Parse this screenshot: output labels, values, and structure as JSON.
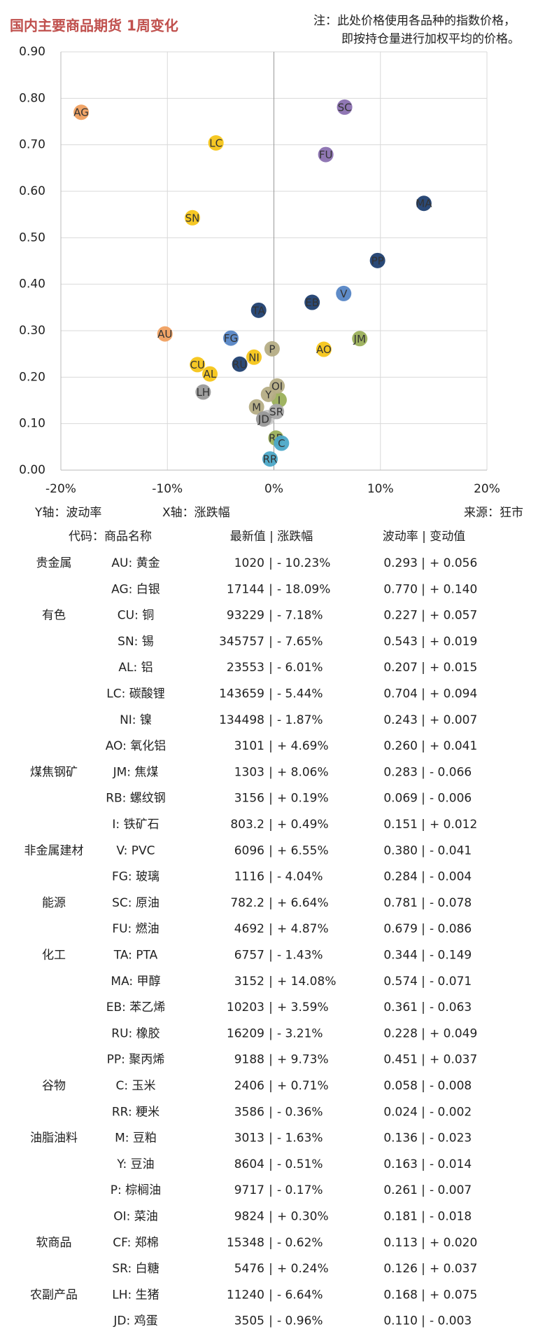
{
  "header": {
    "title": "国内主要商品期货 1周变化",
    "note": [
      "注：此处价格使用各品种的指数价格，",
      "即按持仓量进行加权平均的价格。"
    ]
  },
  "chart_data": {
    "type": "scatter",
    "labels": [
      "AU",
      "AG",
      "CU",
      "SN",
      "AL",
      "LC",
      "NI",
      "AO",
      "JM",
      "RB",
      "I",
      "V",
      "FG",
      "SC",
      "FU",
      "TA",
      "MA",
      "EB",
      "RU",
      "PP",
      "C",
      "RR",
      "M",
      "Y",
      "P",
      "OI",
      "CF",
      "SR",
      "LH",
      "JD"
    ],
    "x": [
      -10.23,
      -18.09,
      -7.18,
      -7.65,
      -6.01,
      -5.44,
      -1.87,
      4.69,
      8.06,
      0.19,
      0.49,
      6.55,
      -4.04,
      6.64,
      4.87,
      -1.43,
      14.08,
      3.59,
      -3.21,
      9.73,
      0.71,
      -0.36,
      -1.63,
      -0.51,
      -0.17,
      0.3,
      -0.62,
      0.24,
      -6.64,
      -0.96
    ],
    "values": [
      0.293,
      0.77,
      0.227,
      0.543,
      0.207,
      0.704,
      0.243,
      0.26,
      0.283,
      0.069,
      0.151,
      0.38,
      0.284,
      0.781,
      0.679,
      0.344,
      0.574,
      0.361,
      0.228,
      0.451,
      0.058,
      0.024,
      0.136,
      0.163,
      0.261,
      0.181,
      0.113,
      0.126,
      0.168,
      0.11
    ],
    "colors": [
      "#f0a060",
      "#f0a060",
      "#f5c518",
      "#f5c518",
      "#f5c518",
      "#f5c518",
      "#f5c518",
      "#f5c518",
      "#9bb05a",
      "#9bb05a",
      "#9bb05a",
      "#5585c5",
      "#5585c5",
      "#8a70b0",
      "#8a70b0",
      "#1f3f70",
      "#1f3f70",
      "#1f3f70",
      "#1f3f70",
      "#1f3f70",
      "#4ba8c8",
      "#4ba8c8",
      "#b5ad85",
      "#b5ad85",
      "#b5ad85",
      "#b5ad85",
      "#c8c8c8",
      "#a8a8a8",
      "#999999",
      "#999999"
    ],
    "xlim": [
      -20,
      20
    ],
    "xticks": [
      {
        "value": -20,
        "label": "-20%"
      },
      {
        "value": -10,
        "label": "-10%"
      },
      {
        "value": 0,
        "label": "0%"
      },
      {
        "value": 10,
        "label": "10%"
      },
      {
        "value": 20,
        "label": "20%"
      }
    ],
    "ylim": [
      0,
      0.9
    ],
    "yticks": [
      {
        "value": 0,
        "label": "0.00"
      },
      {
        "value": 0.1,
        "label": "0.10"
      },
      {
        "value": 0.2,
        "label": "0.20"
      },
      {
        "value": 0.3,
        "label": "0.30"
      },
      {
        "value": 0.4,
        "label": "0.40"
      },
      {
        "value": 0.5,
        "label": "0.50"
      },
      {
        "value": 0.6,
        "label": "0.60"
      },
      {
        "value": 0.7,
        "label": "0.70"
      },
      {
        "value": 0.8,
        "label": "0.80"
      },
      {
        "value": 0.9,
        "label": "0.90"
      }
    ],
    "grid": true,
    "ylabel": "Y轴：波动率",
    "xlabel": "X轴：涨跌幅",
    "source": "来源：狂市"
  },
  "table": {
    "headers": [
      "代码：商品名称",
      "最新值 | 涨跌幅",
      "波动率 | 变动值"
    ],
    "separator": "|",
    "groups": [
      {
        "name": "贵金属",
        "color": "#f0a060",
        "rows": [
          {
            "name": "AU: 黄金",
            "price": "1020",
            "change": "- 10.23%",
            "vol": "0.293",
            "delta": "+ 0.056"
          },
          {
            "name": "AG: 白银",
            "price": "17144",
            "change": "- 18.09%",
            "vol": "0.770",
            "delta": "+ 0.140"
          }
        ]
      },
      {
        "name": "有色",
        "color": "#ecbc10",
        "rows": [
          {
            "name": "CU: 铜",
            "price": "93229",
            "change": "- 7.18%",
            "vol": "0.227",
            "delta": "+ 0.057"
          },
          {
            "name": "SN: 锡",
            "price": "345757",
            "change": "- 7.65%",
            "vol": "0.543",
            "delta": "+ 0.019"
          },
          {
            "name": "AL: 铝",
            "price": "23553",
            "change": "- 6.01%",
            "vol": "0.207",
            "delta": "+ 0.015"
          },
          {
            "name": "LC: 碳酸锂",
            "price": "143659",
            "change": "- 5.44%",
            "vol": "0.704",
            "delta": "+ 0.094"
          },
          {
            "name": "NI: 镍",
            "price": "134498",
            "change": "- 1.87%",
            "vol": "0.243",
            "delta": "+ 0.007"
          },
          {
            "name": "AO: 氧化铝",
            "price": "3101",
            "change": "+ 4.69%",
            "vol": "0.260",
            "delta": "+ 0.041"
          }
        ]
      },
      {
        "name": "煤焦钢矿",
        "color": "#9bb05a",
        "rows": [
          {
            "name": "JM: 焦煤",
            "price": "1303",
            "change": "+ 8.06%",
            "vol": "0.283",
            "delta": "- 0.066"
          },
          {
            "name": "RB: 螺纹钢",
            "price": "3156",
            "change": "+ 0.19%",
            "vol": "0.069",
            "delta": "- 0.006"
          },
          {
            "name": "I: 铁矿石",
            "price": "803.2",
            "change": "+ 0.49%",
            "vol": "0.151",
            "delta": "+ 0.012"
          }
        ]
      },
      {
        "name": "非金属建材",
        "color": "#5585c5",
        "rows": [
          {
            "name": "V: PVC",
            "price": "6096",
            "change": "+ 6.55%",
            "vol": "0.380",
            "delta": "- 0.041"
          },
          {
            "name": "FG: 玻璃",
            "price": "1116",
            "change": "- 4.04%",
            "vol": "0.284",
            "delta": "- 0.004"
          }
        ]
      },
      {
        "name": "能源",
        "color": "#8a70b0",
        "rows": [
          {
            "name": "SC: 原油",
            "price": "782.2",
            "change": "+ 6.64%",
            "vol": "0.781",
            "delta": "- 0.078"
          },
          {
            "name": "FU: 燃油",
            "price": "4692",
            "change": "+ 4.87%",
            "vol": "0.679",
            "delta": "- 0.086"
          }
        ]
      },
      {
        "name": "化工",
        "color": "#1f3f70",
        "rows": [
          {
            "name": "TA: PTA",
            "price": "6757",
            "change": "- 1.43%",
            "vol": "0.344",
            "delta": "- 0.149"
          },
          {
            "name": "MA: 甲醇",
            "price": "3152",
            "change": "+ 14.08%",
            "vol": "0.574",
            "delta": "- 0.071"
          },
          {
            "name": "EB: 苯乙烯",
            "price": "10203",
            "change": "+ 3.59%",
            "vol": "0.361",
            "delta": "- 0.063"
          },
          {
            "name": "RU: 橡胶",
            "price": "16209",
            "change": "- 3.21%",
            "vol": "0.228",
            "delta": "+ 0.049"
          },
          {
            "name": "PP: 聚丙烯",
            "price": "9188",
            "change": "+ 9.73%",
            "vol": "0.451",
            "delta": "+ 0.037"
          }
        ]
      },
      {
        "name": "谷物",
        "color": "#4ba8c8",
        "rows": [
          {
            "name": "C: 玉米",
            "price": "2406",
            "change": "+ 0.71%",
            "vol": "0.058",
            "delta": "- 0.008"
          },
          {
            "name": "RR: 粳米",
            "price": "3586",
            "change": "- 0.36%",
            "vol": "0.024",
            "delta": "- 0.002"
          }
        ]
      },
      {
        "name": "油脂油料",
        "color": "#9a9258",
        "rows": [
          {
            "name": "M: 豆粕",
            "price": "3013",
            "change": "- 1.63%",
            "vol": "0.136",
            "delta": "- 0.023"
          },
          {
            "name": "Y: 豆油",
            "price": "8604",
            "change": "- 0.51%",
            "vol": "0.163",
            "delta": "- 0.014"
          },
          {
            "name": "P: 棕榈油",
            "price": "9717",
            "change": "- 0.17%",
            "vol": "0.261",
            "delta": "- 0.007"
          },
          {
            "name": "OI: 菜油",
            "price": "9824",
            "change": "+ 0.30%",
            "vol": "0.181",
            "delta": "- 0.018"
          }
        ]
      },
      {
        "name": "软商品",
        "color": "#bbbbbb",
        "rows": [
          {
            "name": "CF: 郑棉",
            "price": "15348",
            "change": "- 0.62%",
            "vol": "0.113",
            "delta": "+ 0.020"
          },
          {
            "name": "SR: 白糖",
            "price": "5476",
            "change": "+ 0.24%",
            "vol": "0.126",
            "delta": "+ 0.037"
          }
        ]
      },
      {
        "name": "农副产品",
        "color": "#666666",
        "rows": [
          {
            "name": "LH: 生猪",
            "price": "11240",
            "change": "- 6.64%",
            "vol": "0.168",
            "delta": "+ 0.075"
          },
          {
            "name": "JD: 鸡蛋",
            "price": "3505",
            "change": "- 0.96%",
            "vol": "0.110",
            "delta": "- 0.003"
          }
        ]
      }
    ]
  }
}
